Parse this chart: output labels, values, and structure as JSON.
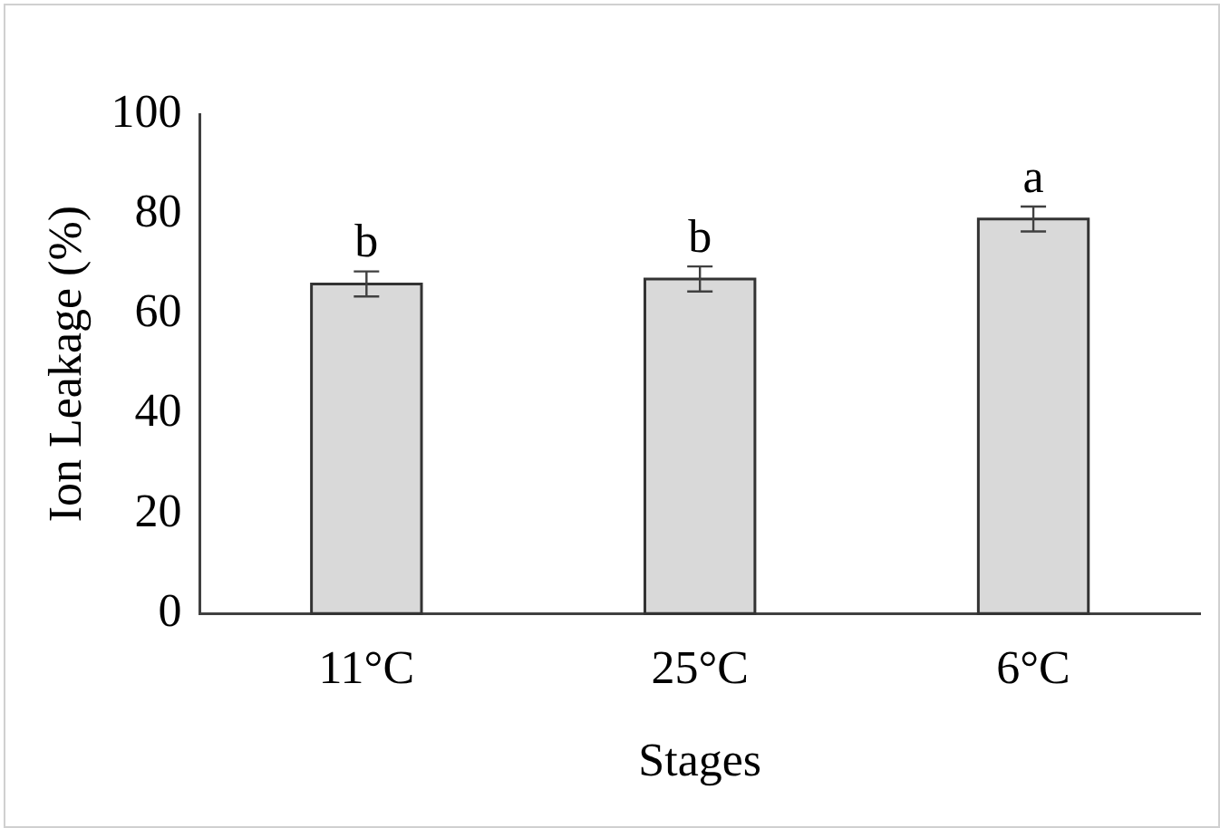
{
  "chart_data": {
    "type": "bar",
    "xlabel": "Stages",
    "ylabel": "Ion Leakage (%)",
    "categories": [
      "11°C",
      "25°C",
      "6°C"
    ],
    "values": [
      66,
      67,
      79
    ],
    "errors": [
      2.5,
      2.5,
      2.5
    ],
    "color": "#d9d9d9",
    "ylim": [
      0,
      100
    ],
    "yticks": [
      0,
      20,
      40,
      60,
      80,
      100
    ],
    "grid": false,
    "legend": false,
    "annotations": [
      {
        "text": "b",
        "x": "11°C",
        "y": 68.5
      },
      {
        "text": "b",
        "x": "25°C",
        "y": 69.5
      },
      {
        "text": "a",
        "x": "6°C",
        "y": 81.5
      }
    ]
  }
}
